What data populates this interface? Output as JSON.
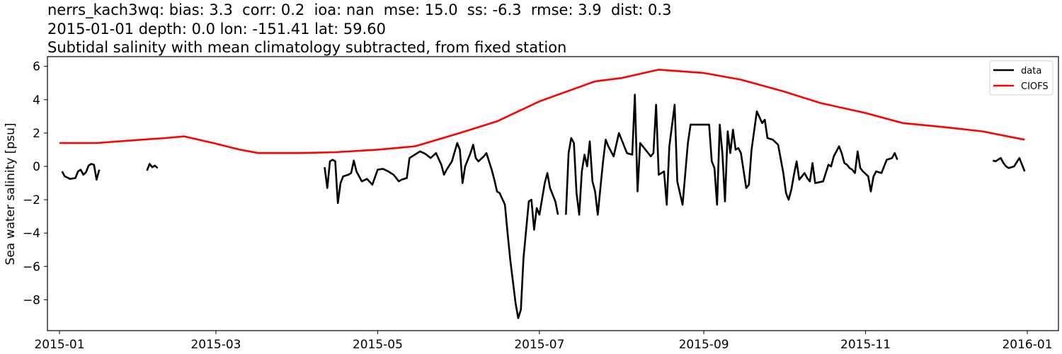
{
  "title": {
    "line1": "nerrs_kach3wq: bias: 3.3  corr: 0.2  ioa: nan  mse: 15.0  ss: -6.3  rmse: 3.9  dist: 0.3",
    "line2": "2015-01-01 depth: 0.0 lon: -151.41 lat: 59.60",
    "line3": "Subtidal salinity with mean climatology subtracted, from fixed station"
  },
  "colors": {
    "data": "#000000",
    "model": "#ff0000"
  },
  "chart_data": {
    "type": "line",
    "title": "Subtidal salinity with mean climatology subtracted, from fixed station",
    "stats": {
      "station": "nerrs_kach3wq",
      "bias": 3.3,
      "corr": 0.2,
      "ioa": "nan",
      "mse": 15.0,
      "ss": -6.3,
      "rmse": 3.9,
      "dist": 0.3,
      "date": "2015-01-01",
      "depth": 0.0,
      "lon": -151.41,
      "lat": 59.6
    },
    "xlabel": "",
    "ylabel": "Sea water salinity [psu]",
    "x_tick_labels": [
      "2015-01",
      "2015-03",
      "2015-05",
      "2015-07",
      "2015-09",
      "2015-11",
      "2016-01"
    ],
    "y_tick_labels": [
      "6",
      "4",
      "2",
      "0",
      "−2",
      "−4",
      "−6",
      "−8"
    ],
    "y_ticks": [
      6,
      4,
      2,
      0,
      -2,
      -4,
      -6,
      -8
    ],
    "ylim": [
      -9.8,
      6.6
    ],
    "xlim": [
      "2014-12-27",
      "2016-01-12"
    ],
    "grid": false,
    "legend_position": "upper right",
    "series": [
      {
        "name": "data",
        "color": "#000000",
        "segments": [
          [
            [
              "2015-01-02",
              -0.3
            ],
            [
              "2015-01-03",
              -0.6
            ],
            [
              "2015-01-05",
              -0.75
            ],
            [
              "2015-01-07",
              -0.7
            ],
            [
              "2015-01-08",
              -0.3
            ],
            [
              "2015-01-09",
              -0.2
            ],
            [
              "2015-01-10",
              -0.5
            ],
            [
              "2015-01-11",
              -0.35
            ],
            [
              "2015-01-12",
              0.05
            ],
            [
              "2015-01-13",
              0.15
            ],
            [
              "2015-01-14",
              0.1
            ],
            [
              "2015-01-15",
              -0.8
            ],
            [
              "2015-01-16",
              -0.2
            ]
          ],
          [
            [
              "2015-02-03",
              -0.25
            ],
            [
              "2015-02-04",
              0.15
            ],
            [
              "2015-02-05",
              -0.05
            ],
            [
              "2015-02-06",
              0.05
            ],
            [
              "2015-02-07",
              -0.1
            ]
          ],
          [
            [
              "2015-04-11",
              -0.05
            ],
            [
              "2015-04-12",
              -1.3
            ],
            [
              "2015-04-13",
              0.3
            ],
            [
              "2015-04-14",
              0.4
            ],
            [
              "2015-04-15",
              0.3
            ],
            [
              "2015-04-16",
              -2.2
            ],
            [
              "2015-04-17",
              -1.0
            ],
            [
              "2015-04-18",
              -0.6
            ],
            [
              "2015-04-20",
              -0.5
            ],
            [
              "2015-04-21",
              -0.4
            ],
            [
              "2015-04-22",
              0.35
            ],
            [
              "2015-04-23",
              -0.3
            ],
            [
              "2015-04-25",
              -0.9
            ],
            [
              "2015-04-27",
              -0.75
            ],
            [
              "2015-04-29",
              -1.1
            ],
            [
              "2015-05-01",
              -0.2
            ],
            [
              "2015-05-03",
              -0.15
            ],
            [
              "2015-05-05",
              -0.3
            ],
            [
              "2015-05-07",
              -0.5
            ],
            [
              "2015-05-09",
              -0.9
            ],
            [
              "2015-05-10",
              -0.8
            ],
            [
              "2015-05-12",
              -0.7
            ],
            [
              "2015-05-13",
              0.5
            ],
            [
              "2015-05-15",
              0.7
            ],
            [
              "2015-05-17",
              0.9
            ],
            [
              "2015-05-19",
              0.75
            ],
            [
              "2015-05-21",
              0.5
            ],
            [
              "2015-05-23",
              0.8
            ],
            [
              "2015-05-25",
              0.1
            ],
            [
              "2015-05-26",
              -0.5
            ],
            [
              "2015-05-27",
              -0.2
            ],
            [
              "2015-05-29",
              0.3
            ],
            [
              "2015-05-31",
              1.4
            ],
            [
              "2015-06-01",
              1.0
            ],
            [
              "2015-06-02",
              -1.0
            ],
            [
              "2015-06-03",
              0.0
            ],
            [
              "2015-06-05",
              0.8
            ],
            [
              "2015-06-06",
              1.3
            ],
            [
              "2015-06-07",
              0.5
            ],
            [
              "2015-06-08",
              0.3
            ],
            [
              "2015-06-10",
              0.6
            ],
            [
              "2015-06-11",
              0.8
            ],
            [
              "2015-06-12",
              0.3
            ],
            [
              "2015-06-13",
              -0.2
            ],
            [
              "2015-06-14",
              -0.8
            ],
            [
              "2015-06-15",
              -1.5
            ],
            [
              "2015-06-16",
              -1.6
            ],
            [
              "2015-06-18",
              -2.3
            ],
            [
              "2015-06-19",
              -4.0
            ],
            [
              "2015-06-20",
              -5.6
            ],
            [
              "2015-06-22",
              -8.2
            ],
            [
              "2015-06-23",
              -9.1
            ],
            [
              "2015-06-24",
              -8.6
            ],
            [
              "2015-06-25",
              -5.5
            ],
            [
              "2015-06-27",
              -2.1
            ],
            [
              "2015-06-28",
              -2.0
            ],
            [
              "2015-06-29",
              -3.8
            ],
            [
              "2015-06-30",
              -2.5
            ],
            [
              "2015-07-01",
              -2.9
            ],
            [
              "2015-07-03",
              -1.0
            ],
            [
              "2015-07-04",
              -0.4
            ],
            [
              "2015-07-05",
              -1.3
            ],
            [
              "2015-07-07",
              -2.1
            ],
            [
              "2015-07-08",
              -2.9
            ]
          ],
          [
            [
              "2015-07-11",
              -2.9
            ],
            [
              "2015-07-12",
              0.8
            ],
            [
              "2015-07-13",
              1.7
            ],
            [
              "2015-07-14",
              1.4
            ],
            [
              "2015-07-15",
              -1.6
            ],
            [
              "2015-07-16",
              -2.9
            ],
            [
              "2015-07-17",
              -0.3
            ],
            [
              "2015-07-18",
              0.7
            ],
            [
              "2015-07-19",
              0.0
            ],
            [
              "2015-07-20",
              1.5
            ],
            [
              "2015-07-21",
              -0.9
            ],
            [
              "2015-07-22",
              -1.5
            ],
            [
              "2015-07-23",
              -2.9
            ],
            [
              "2015-07-24",
              -1.3
            ],
            [
              "2015-07-25",
              0.3
            ],
            [
              "2015-07-26",
              1.6
            ],
            [
              "2015-07-27",
              1.2
            ],
            [
              "2015-07-29",
              0.6
            ],
            [
              "2015-07-31",
              2.0
            ],
            [
              "2015-08-01",
              1.6
            ],
            [
              "2015-08-03",
              0.8
            ],
            [
              "2015-08-05",
              0.7
            ],
            [
              "2015-08-06",
              4.3
            ],
            [
              "2015-08-07",
              -1.5
            ],
            [
              "2015-08-08",
              1.4
            ],
            [
              "2015-08-10",
              1.0
            ],
            [
              "2015-08-12",
              0.6
            ],
            [
              "2015-08-13",
              0.8
            ],
            [
              "2015-08-14",
              3.7
            ],
            [
              "2015-08-15",
              -0.5
            ],
            [
              "2015-08-17",
              -0.3
            ],
            [
              "2015-08-18",
              -2.3
            ],
            [
              "2015-08-19",
              1.2
            ],
            [
              "2015-08-21",
              3.7
            ],
            [
              "2015-08-22",
              -0.9
            ],
            [
              "2015-08-24",
              -2.3
            ],
            [
              "2015-08-26",
              1.4
            ],
            [
              "2015-08-27",
              2.5
            ],
            [
              "2015-08-30",
              2.5
            ],
            [
              "2015-09-03",
              2.5
            ],
            [
              "2015-09-04",
              0.3
            ],
            [
              "2015-09-05",
              -0.1
            ],
            [
              "2015-09-06",
              -2.3
            ],
            [
              "2015-09-07",
              2.5
            ],
            [
              "2015-09-08",
              0.8
            ],
            [
              "2015-09-09",
              -2.1
            ],
            [
              "2015-09-10",
              2.1
            ],
            [
              "2015-09-11",
              0.8
            ],
            [
              "2015-09-12",
              2.2
            ],
            [
              "2015-09-13",
              1.0
            ],
            [
              "2015-09-14",
              1.1
            ],
            [
              "2015-09-15",
              0.8
            ],
            [
              "2015-09-17",
              -1.3
            ],
            [
              "2015-09-18",
              -1.1
            ],
            [
              "2015-09-19",
              1.0
            ],
            [
              "2015-09-21",
              3.3
            ],
            [
              "2015-09-23",
              2.6
            ],
            [
              "2015-09-24",
              2.8
            ],
            [
              "2015-09-25",
              1.7
            ],
            [
              "2015-09-27",
              1.6
            ],
            [
              "2015-09-29",
              1.3
            ],
            [
              "2015-10-01",
              -0.4
            ],
            [
              "2015-10-02",
              -1.6
            ],
            [
              "2015-10-03",
              -2.0
            ],
            [
              "2015-10-04",
              -1.4
            ],
            [
              "2015-10-05",
              -0.5
            ],
            [
              "2015-10-06",
              0.3
            ],
            [
              "2015-10-07",
              -0.8
            ],
            [
              "2015-10-08",
              -0.6
            ],
            [
              "2015-10-09",
              -0.4
            ],
            [
              "2015-10-10",
              -0.7
            ],
            [
              "2015-10-11",
              -0.9
            ],
            [
              "2015-10-12",
              0.2
            ],
            [
              "2015-10-13",
              -1.0
            ],
            [
              "2015-10-16",
              -0.9
            ],
            [
              "2015-10-18",
              0.1
            ],
            [
              "2015-10-19",
              0.0
            ],
            [
              "2015-10-20",
              0.6
            ],
            [
              "2015-10-22",
              1.2
            ],
            [
              "2015-10-23",
              0.8
            ],
            [
              "2015-10-24",
              0.2
            ],
            [
              "2015-10-25",
              0.1
            ],
            [
              "2015-10-26",
              -0.1
            ],
            [
              "2015-10-27",
              -0.2
            ],
            [
              "2015-10-28",
              -0.4
            ],
            [
              "2015-10-29",
              0.9
            ],
            [
              "2015-10-30",
              -0.1
            ],
            [
              "2015-10-31",
              -0.3
            ],
            [
              "2015-11-02",
              -0.6
            ],
            [
              "2015-11-03",
              -1.5
            ],
            [
              "2015-11-04",
              -0.6
            ],
            [
              "2015-11-05",
              -0.3
            ],
            [
              "2015-11-07",
              -0.4
            ],
            [
              "2015-11-09",
              0.4
            ],
            [
              "2015-11-11",
              0.5
            ],
            [
              "2015-11-12",
              0.8
            ],
            [
              "2015-11-13",
              0.4
            ]
          ],
          [
            [
              "2015-12-19",
              0.35
            ],
            [
              "2015-12-20",
              0.3
            ],
            [
              "2015-12-22",
              0.5
            ],
            [
              "2015-12-23",
              0.2
            ],
            [
              "2015-12-24",
              0.0
            ],
            [
              "2015-12-25",
              -0.1
            ],
            [
              "2015-12-27",
              0.0
            ],
            [
              "2015-12-29",
              0.5
            ],
            [
              "2015-12-31",
              -0.3
            ]
          ]
        ]
      },
      {
        "name": "CIOFS",
        "color": "#ff0000",
        "points": [
          [
            "2015-01-01",
            1.4
          ],
          [
            "2015-01-15",
            1.4
          ],
          [
            "2015-02-01",
            1.6
          ],
          [
            "2015-02-10",
            1.7
          ],
          [
            "2015-02-17",
            1.8
          ],
          [
            "2015-02-28",
            1.4
          ],
          [
            "2015-03-10",
            1.0
          ],
          [
            "2015-03-17",
            0.8
          ],
          [
            "2015-04-01",
            0.8
          ],
          [
            "2015-04-15",
            0.85
          ],
          [
            "2015-05-01",
            1.0
          ],
          [
            "2015-05-15",
            1.2
          ],
          [
            "2015-06-01",
            2.0
          ],
          [
            "2015-06-15",
            2.7
          ],
          [
            "2015-07-01",
            3.9
          ],
          [
            "2015-07-15",
            4.7
          ],
          [
            "2015-07-22",
            5.1
          ],
          [
            "2015-08-01",
            5.3
          ],
          [
            "2015-08-15",
            5.8
          ],
          [
            "2015-09-01",
            5.6
          ],
          [
            "2015-09-15",
            5.2
          ],
          [
            "2015-10-01",
            4.5
          ],
          [
            "2015-10-15",
            3.8
          ],
          [
            "2015-11-01",
            3.2
          ],
          [
            "2015-11-15",
            2.6
          ],
          [
            "2015-12-01",
            2.35
          ],
          [
            "2015-12-15",
            2.1
          ],
          [
            "2015-12-31",
            1.6
          ]
        ]
      }
    ]
  },
  "legend": {
    "items": [
      {
        "label": "data",
        "color": "#000000"
      },
      {
        "label": "CIOFS",
        "color": "#ff0000"
      }
    ]
  }
}
